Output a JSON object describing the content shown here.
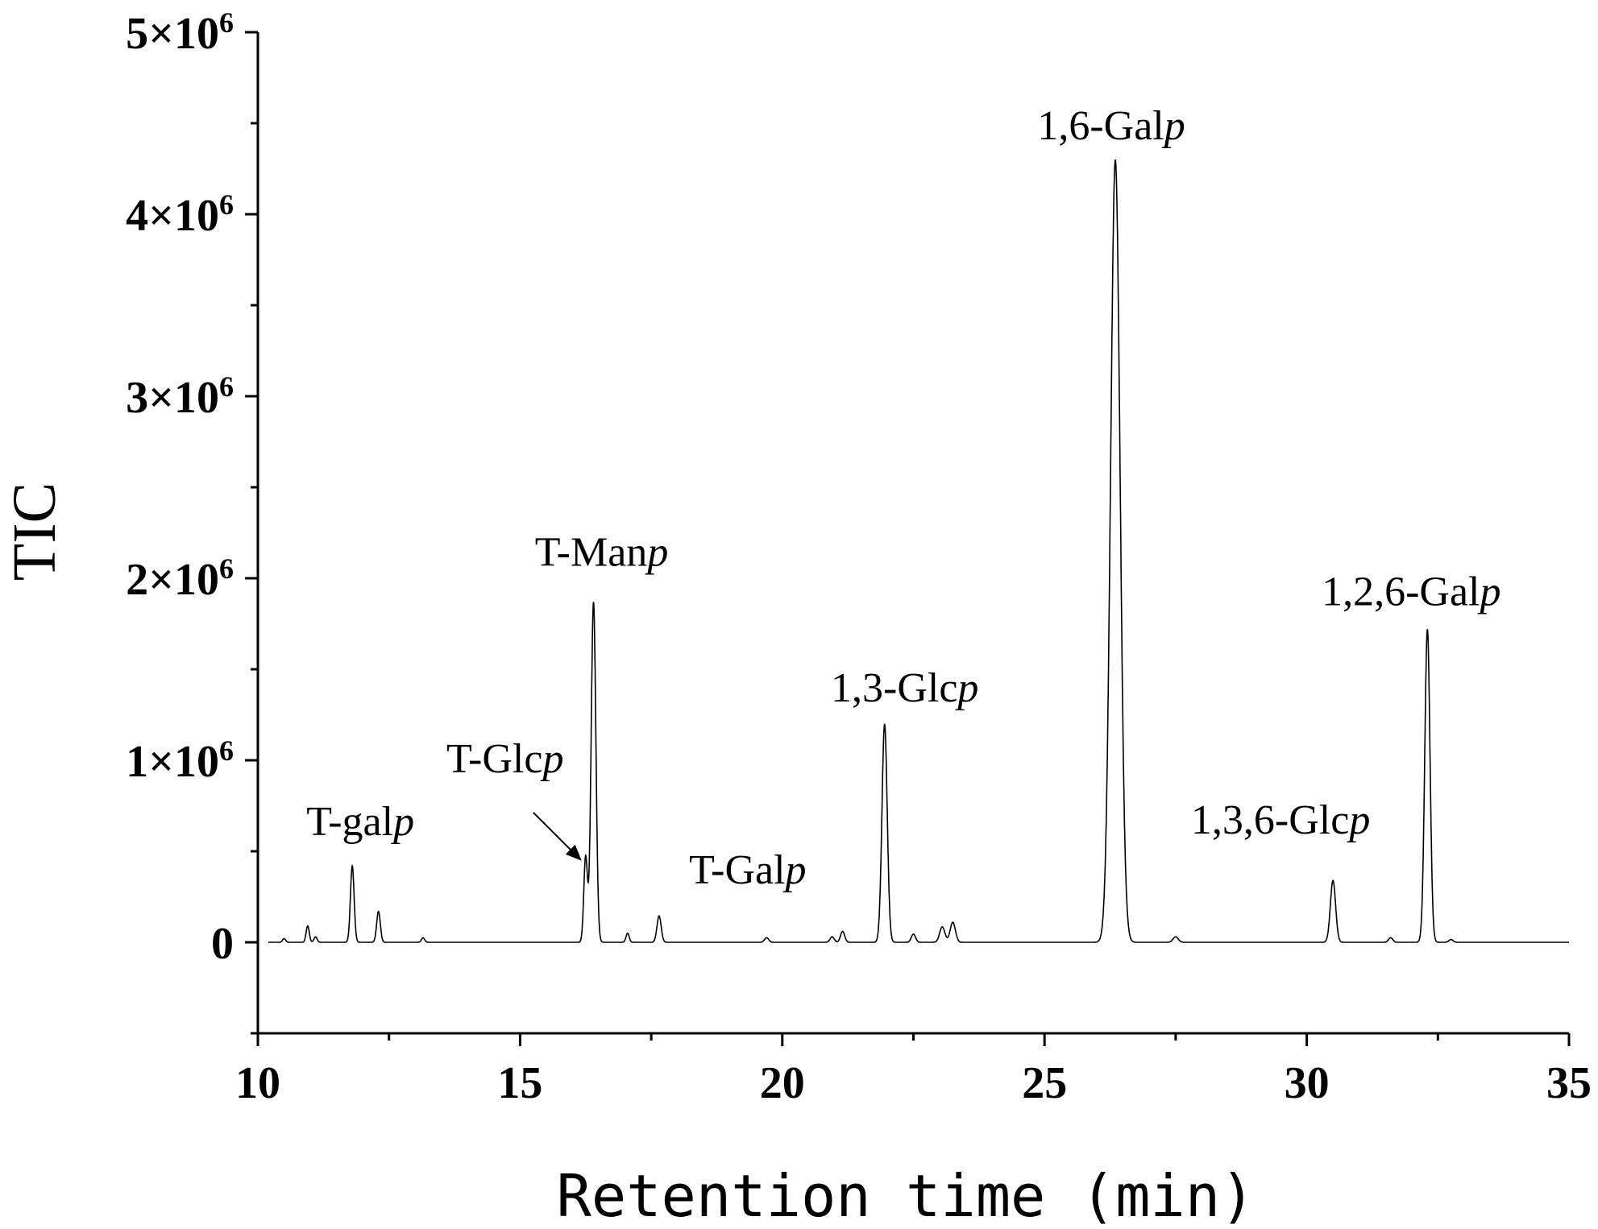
{
  "chart_data": {
    "type": "line",
    "xlabel": "Retention time (min)",
    "ylabel": "TIC",
    "xlim": [
      10,
      35
    ],
    "ylim": [
      -500000,
      5000000
    ],
    "x_ticks": [
      10,
      15,
      20,
      25,
      30,
      35
    ],
    "x_tick_labels": [
      "10",
      "15",
      "20",
      "25",
      "30",
      "35"
    ],
    "y_ticks": [
      0,
      1000000,
      2000000,
      3000000,
      4000000,
      5000000
    ],
    "y_tick_labels": [
      {
        "base": "0",
        "exp": ""
      },
      {
        "base": "1×10",
        "exp": "6"
      },
      {
        "base": "2×10",
        "exp": "6"
      },
      {
        "base": "3×10",
        "exp": "6"
      },
      {
        "base": "4×10",
        "exp": "6"
      },
      {
        "base": "5×10",
        "exp": "6"
      }
    ],
    "line_color": "#000000",
    "peaks": [
      {
        "x": 10.5,
        "y": 20000,
        "w": 0.03
      },
      {
        "x": 10.95,
        "y": 90000,
        "w": 0.03
      },
      {
        "x": 11.1,
        "y": 30000,
        "w": 0.03
      },
      {
        "x": 11.8,
        "y": 420000,
        "w": 0.035
      },
      {
        "x": 12.3,
        "y": 170000,
        "w": 0.035
      },
      {
        "x": 13.15,
        "y": 25000,
        "w": 0.03
      },
      {
        "x": 16.25,
        "y": 470000,
        "w": 0.035
      },
      {
        "x": 16.4,
        "y": 1870000,
        "w": 0.045
      },
      {
        "x": 17.05,
        "y": 50000,
        "w": 0.03
      },
      {
        "x": 17.65,
        "y": 145000,
        "w": 0.04
      },
      {
        "x": 19.7,
        "y": 25000,
        "w": 0.04
      },
      {
        "x": 20.95,
        "y": 30000,
        "w": 0.04
      },
      {
        "x": 21.15,
        "y": 60000,
        "w": 0.04
      },
      {
        "x": 21.95,
        "y": 1200000,
        "w": 0.05
      },
      {
        "x": 22.5,
        "y": 45000,
        "w": 0.04
      },
      {
        "x": 23.05,
        "y": 85000,
        "w": 0.05
      },
      {
        "x": 23.25,
        "y": 110000,
        "w": 0.05
      },
      {
        "x": 26.35,
        "y": 4300000,
        "w": 0.09
      },
      {
        "x": 27.5,
        "y": 30000,
        "w": 0.05
      },
      {
        "x": 30.5,
        "y": 340000,
        "w": 0.05
      },
      {
        "x": 31.6,
        "y": 25000,
        "w": 0.04
      },
      {
        "x": 32.3,
        "y": 1720000,
        "w": 0.05
      },
      {
        "x": 32.75,
        "y": 15000,
        "w": 0.04
      }
    ],
    "annotations": [
      {
        "name": "T-gal",
        "suffix": "p",
        "x": 11.8,
        "y": 420000
      },
      {
        "name": "T-Glc",
        "suffix": "p",
        "x": 16.25,
        "y": 470000
      },
      {
        "name": "T-Man",
        "suffix": "p",
        "x": 16.4,
        "y": 1870000
      },
      {
        "name": "T-Gal",
        "suffix": "p",
        "x": 17.65,
        "y": 145000
      },
      {
        "name": "1,3-Glc",
        "suffix": "p",
        "x": 21.95,
        "y": 1200000
      },
      {
        "name": "1,6-Gal",
        "suffix": "p",
        "x": 26.35,
        "y": 4300000
      },
      {
        "name": "1,3,6-Glc",
        "suffix": "p",
        "x": 30.5,
        "y": 340000
      },
      {
        "name": "1,2,6-Gal",
        "suffix": "p",
        "x": 32.3,
        "y": 1720000
      }
    ]
  }
}
